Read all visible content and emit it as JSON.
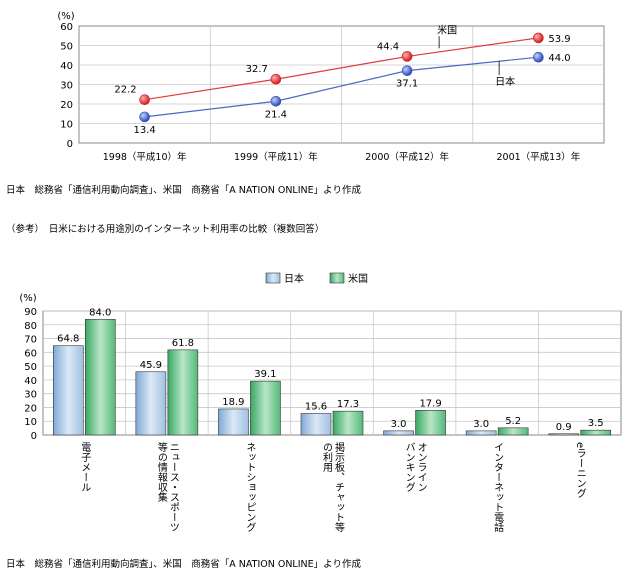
{
  "chart_data": [
    {
      "type": "line",
      "yunit": "(%)",
      "yticks": [
        0,
        10,
        20,
        30,
        40,
        50,
        60
      ],
      "ylim": [
        0,
        60
      ],
      "categories": [
        "1998（平成10）年",
        "1999（平成11）年",
        "2000（平成12）年",
        "2001（平成13）年"
      ],
      "series": [
        {
          "name": "米国",
          "values": [
            22.2,
            32.7,
            44.4,
            53.9
          ],
          "labels": [
            "22.2",
            "32.7",
            "44.4",
            "53.9"
          ],
          "color": "#e03a3a",
          "marker": "#d81e1e"
        },
        {
          "name": "日本",
          "values": [
            13.4,
            21.4,
            37.1,
            44.0
          ],
          "labels": [
            "13.4",
            "21.4",
            "37.1",
            "44.0"
          ],
          "color": "#4a6bc4",
          "marker": "#2e54b8"
        }
      ],
      "grid": true,
      "source": "日本　総務省「通信利用動向調査」、米国　商務省「A NATION ONLINE」より作成"
    },
    {
      "type": "bar",
      "heading": "（参考）　日米における用途別のインターネット利用率の比較（複数回答）",
      "yunit": "(%)",
      "yticks": [
        0,
        10,
        20,
        30,
        40,
        50,
        60,
        70,
        80,
        90
      ],
      "ylim": [
        0,
        90
      ],
      "legend": {
        "position": "top-center"
      },
      "categories": [
        [
          "電子メール"
        ],
        [
          "ニュース・スポーツ",
          "等の情報収集"
        ],
        [
          "ネットショッピング"
        ],
        [
          "掲示板、チャット等",
          "の利用"
        ],
        [
          "オンライン",
          "バンキング"
        ],
        [
          "インターネット電話"
        ],
        [
          "eラーニング"
        ]
      ],
      "series": [
        {
          "name": "日本",
          "values": [
            64.8,
            45.9,
            18.9,
            15.6,
            3.0,
            3.0,
            0.9
          ],
          "labels": [
            "64.8",
            "45.9",
            "18.9",
            "15.6",
            "3.0",
            "3.0",
            "0.9"
          ],
          "color": "#a8c8e8"
        },
        {
          "name": "米国",
          "values": [
            84.0,
            61.8,
            39.1,
            17.3,
            17.9,
            5.2,
            3.5
          ],
          "labels": [
            "84.0",
            "61.8",
            "39.1",
            "17.3",
            "17.9",
            "5.2",
            "3.5"
          ],
          "color": "#6cc48c"
        }
      ],
      "grid": true,
      "source": "日本　総務省「通信利用動向調査」、米国　商務省「A NATION ONLINE」より作成"
    }
  ]
}
